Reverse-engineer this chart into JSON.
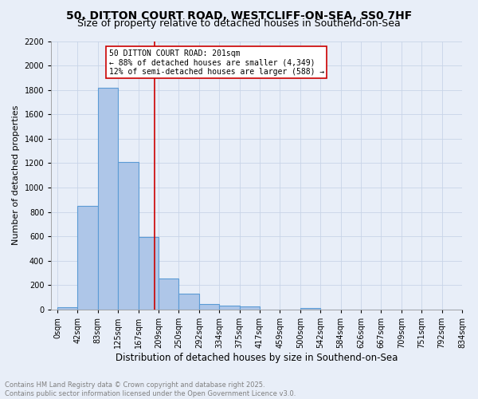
{
  "title": "50, DITTON COURT ROAD, WESTCLIFF-ON-SEA, SS0 7HF",
  "subtitle": "Size of property relative to detached houses in Southend-on-Sea",
  "xlabel": "Distribution of detached houses by size in Southend-on-Sea",
  "ylabel": "Number of detached properties",
  "bin_labels": [
    "0sqm",
    "42sqm",
    "83sqm",
    "125sqm",
    "167sqm",
    "209sqm",
    "250sqm",
    "292sqm",
    "334sqm",
    "375sqm",
    "417sqm",
    "459sqm",
    "500sqm",
    "542sqm",
    "584sqm",
    "626sqm",
    "667sqm",
    "709sqm",
    "751sqm",
    "792sqm",
    "834sqm"
  ],
  "bar_heights": [
    22,
    848,
    1820,
    1210,
    595,
    258,
    132,
    43,
    30,
    25,
    0,
    0,
    15,
    0,
    0,
    0,
    0,
    0,
    0,
    0
  ],
  "bar_color": "#aec6e8",
  "bar_edge_color": "#5b9bd5",
  "vline_x_bin": 4.83,
  "vline_color": "#cc0000",
  "annotation_text": "50 DITTON COURT ROAD: 201sqm\n← 88% of detached houses are smaller (4,349)\n12% of semi-detached houses are larger (588) →",
  "annotation_box_color": "#ffffff",
  "annotation_box_edge": "#cc0000",
  "ylim": [
    0,
    2200
  ],
  "yticks": [
    0,
    200,
    400,
    600,
    800,
    1000,
    1200,
    1400,
    1600,
    1800,
    2000,
    2200
  ],
  "bg_color": "#e8eef8",
  "footer": "Contains HM Land Registry data © Crown copyright and database right 2025.\nContains public sector information licensed under the Open Government Licence v3.0.",
  "title_fontsize": 10,
  "subtitle_fontsize": 9,
  "ylabel_fontsize": 8,
  "xlabel_fontsize": 8.5,
  "tick_fontsize": 7,
  "footer_fontsize": 6
}
